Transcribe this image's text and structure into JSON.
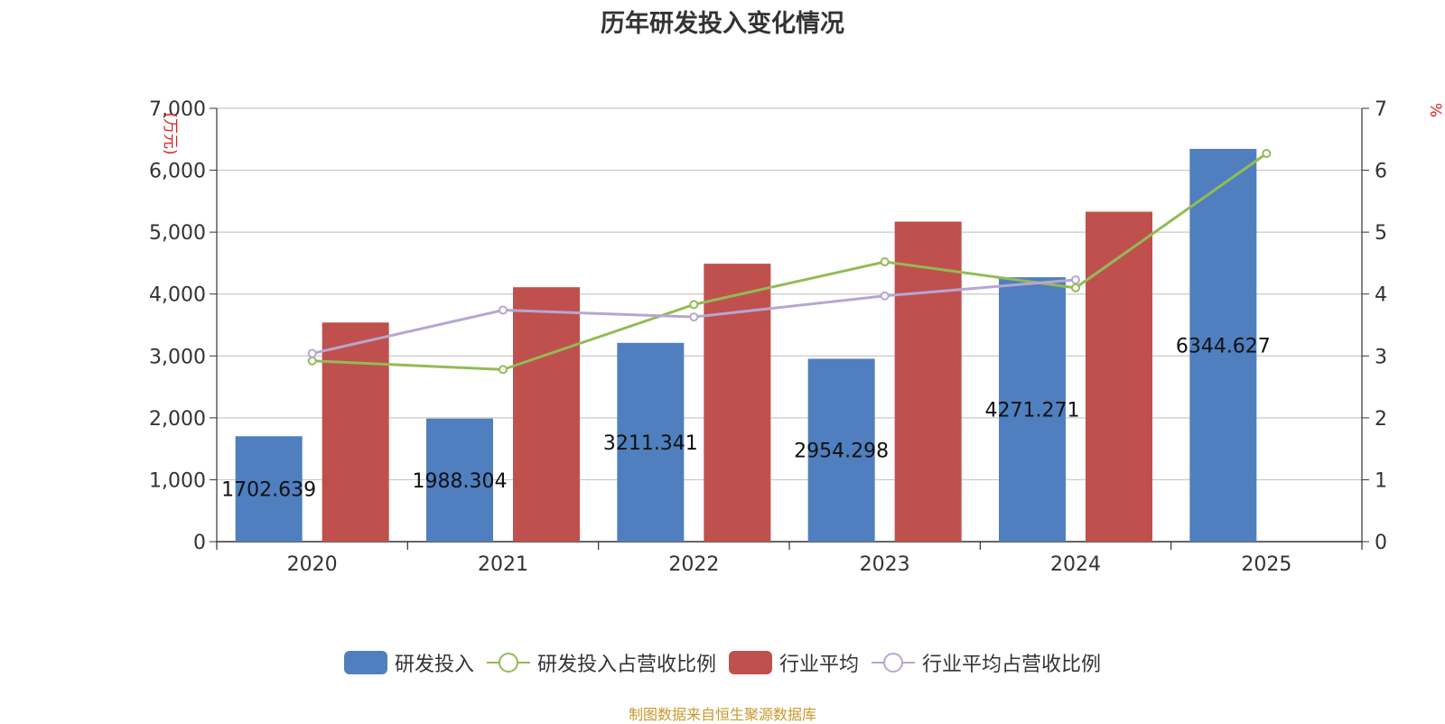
{
  "chart_data": {
    "type": "bar",
    "title": "历年研发投入变化情况",
    "categories": [
      "2020",
      "2021",
      "2022",
      "2023",
      "2024",
      "2025"
    ],
    "y_left": {
      "unit_label": "(万元)",
      "range": [
        0,
        7000
      ],
      "ticks": [
        "0",
        "1,000",
        "2,000",
        "3,000",
        "4,000",
        "5,000",
        "6,000",
        "7,000"
      ]
    },
    "y_right": {
      "unit_label": "%",
      "range": [
        0,
        7
      ],
      "ticks": [
        "0",
        "1",
        "2",
        "3",
        "4",
        "5",
        "6",
        "7"
      ]
    },
    "grid": true,
    "legend_position": "bottom",
    "series": [
      {
        "name": "研发投入",
        "kind": "bar",
        "axis": "left",
        "color": "#4f7fbf",
        "values": [
          1702.639,
          1988.304,
          3211.341,
          2954.298,
          4271.271,
          6344.627
        ],
        "labels": [
          "1702.639",
          "1988.304",
          "3211.341",
          "2954.298",
          "4271.271",
          "6344.627"
        ]
      },
      {
        "name": "研发投入占营收比例",
        "kind": "line",
        "axis": "right",
        "color": "#93bb55",
        "values": [
          2.92,
          2.78,
          3.83,
          4.52,
          4.1,
          6.27
        ]
      },
      {
        "name": "行业平均",
        "kind": "bar",
        "axis": "left",
        "color": "#c0504d",
        "values": [
          3540,
          4110,
          4490,
          5170,
          5330,
          null
        ]
      },
      {
        "name": "行业平均占营收比例",
        "kind": "line",
        "axis": "right",
        "color": "#b7a6d1",
        "values": [
          3.04,
          3.74,
          3.63,
          3.97,
          4.23,
          null
        ]
      }
    ],
    "source_note": "制图数据来自恒生聚源数据库"
  }
}
